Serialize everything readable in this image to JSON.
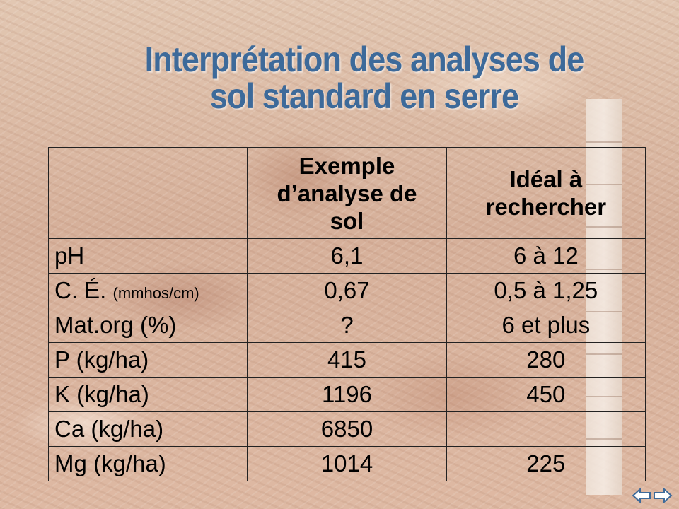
{
  "slide": {
    "title_line1": "Interprétation des analyses de",
    "title_line2": "sol standard en serre",
    "title_color": "#3d6a9a"
  },
  "table": {
    "headers": [
      "",
      "Exemple d’analyse de sol",
      "Idéal à rechercher"
    ],
    "rows": [
      {
        "label": "pH",
        "unit": "",
        "sample": "6,1",
        "ideal": "6 à 12"
      },
      {
        "label": "C. É. ",
        "unit": "(mmhos/cm)",
        "sample": "0,67",
        "ideal": "0,5 à 1,25"
      },
      {
        "label": "Mat.org (%)",
        "unit": "",
        "sample": "?",
        "ideal": "6 et plus"
      },
      {
        "label": "P (kg/ha)",
        "unit": "",
        "sample": "415",
        "ideal": "280"
      },
      {
        "label": "K (kg/ha)",
        "unit": "",
        "sample": "1196",
        "ideal": "450"
      },
      {
        "label": "Ca (kg/ha)",
        "unit": "",
        "sample": "6850",
        "ideal": ""
      },
      {
        "label": "Mg (kg/ha)",
        "unit": "",
        "sample": "1014",
        "ideal": "225"
      }
    ]
  },
  "nav": {
    "prev_icon": "arrow-left-icon",
    "next_icon": "arrow-right-icon"
  }
}
